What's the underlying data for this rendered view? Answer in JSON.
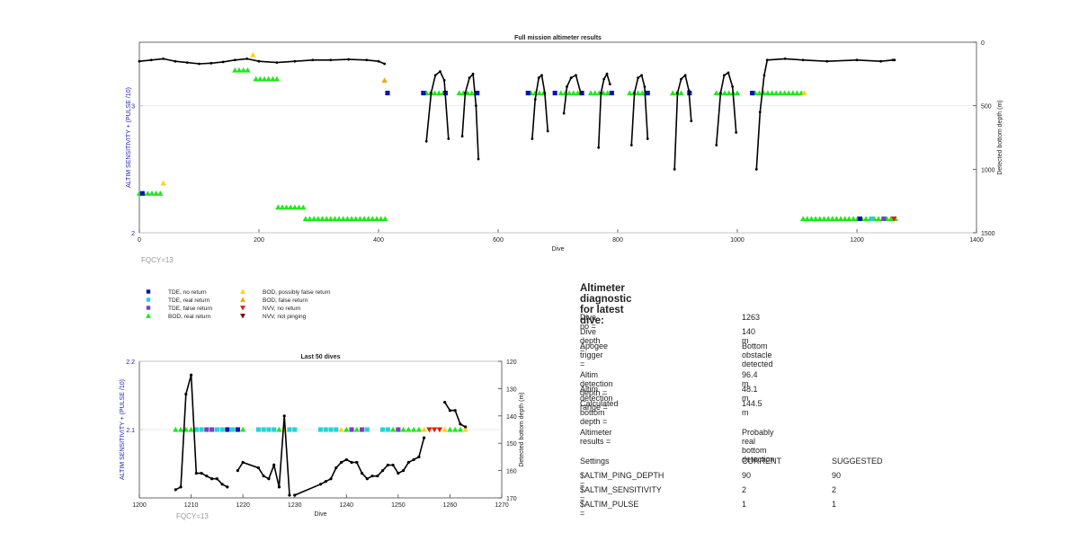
{
  "colors": {
    "tde_no_return": "#0b12b5",
    "tde_real_return": "#22d3d8",
    "tde_false_return": "#7a3fc4",
    "bod_real_return": "#1ee81a",
    "bod_possibly_false": "#ffd11a",
    "bod_false_return": "#f0a800",
    "nvv_no_return": "#e0200a",
    "nvv_not_pinging": "#7a0a0a",
    "trace": "#000000",
    "left_axis": "#2222c0",
    "fqcy": "#999999"
  },
  "chart_data": [
    {
      "type": "scatter",
      "title": "Full mission altimeter results",
      "xlabel": "Dive",
      "ylabel": "ALTIM SENSITIVITY + (PULSE /10)",
      "y2label": "Detected bottom depth (m)",
      "xlim": [
        0,
        1400
      ],
      "ylim": [
        2,
        3.5
      ],
      "y2lim": [
        1500,
        0
      ],
      "xticks": [
        "0",
        "200",
        "400",
        "600",
        "800",
        "1000",
        "1200",
        "1400"
      ],
      "yticks": [
        "2",
        "3"
      ],
      "y2ticks": [
        "0",
        "500",
        "1000",
        "1500"
      ],
      "annotation": "FQCY=13",
      "grid": true,
      "marker_bands": [
        {
          "x0": 0,
          "x1": 40,
          "y": 2.31,
          "kind": "bod_real_return"
        },
        {
          "x0": 160,
          "x1": 185,
          "y": 3.28,
          "kind": "bod_real_return"
        },
        {
          "x0": 195,
          "x1": 235,
          "y": 3.21,
          "kind": "bod_real_return"
        },
        {
          "x0": 232,
          "x1": 280,
          "y": 2.2,
          "kind": "bod_real_return"
        },
        {
          "x0": 278,
          "x1": 415,
          "y": 2.11,
          "kind": "bod_real_return"
        },
        {
          "x0": 480,
          "x1": 510,
          "y": 3.1,
          "kind": "bod_real_return"
        },
        {
          "x0": 535,
          "x1": 560,
          "y": 3.1,
          "kind": "bod_real_return"
        },
        {
          "x0": 655,
          "x1": 680,
          "y": 3.1,
          "kind": "bod_real_return"
        },
        {
          "x0": 705,
          "x1": 745,
          "y": 3.1,
          "kind": "bod_real_return"
        },
        {
          "x0": 755,
          "x1": 785,
          "y": 3.1,
          "kind": "bod_real_return"
        },
        {
          "x0": 820,
          "x1": 850,
          "y": 3.1,
          "kind": "bod_real_return"
        },
        {
          "x0": 892,
          "x1": 912,
          "y": 3.1,
          "kind": "bod_real_return"
        },
        {
          "x0": 965,
          "x1": 1005,
          "y": 3.1,
          "kind": "bod_real_return"
        },
        {
          "x0": 1030,
          "x1": 1110,
          "y": 3.1,
          "kind": "bod_real_return"
        },
        {
          "x0": 1110,
          "x1": 1265,
          "y": 2.11,
          "kind": "bod_real_return"
        }
      ],
      "markers": [
        {
          "x": 5,
          "y": 2.31,
          "kind": "tde_no_return"
        },
        {
          "x": 40,
          "y": 2.39,
          "kind": "bod_possibly_false"
        },
        {
          "x": 190,
          "y": 3.4,
          "kind": "bod_possibly_false"
        },
        {
          "x": 410,
          "y": 3.2,
          "kind": "bod_false_return"
        },
        {
          "x": 415,
          "y": 3.1,
          "kind": "tde_no_return"
        },
        {
          "x": 475,
          "y": 3.1,
          "kind": "tde_no_return"
        },
        {
          "x": 512,
          "y": 3.1,
          "kind": "tde_no_return"
        },
        {
          "x": 565,
          "y": 3.1,
          "kind": "tde_no_return"
        },
        {
          "x": 650,
          "y": 3.1,
          "kind": "tde_no_return"
        },
        {
          "x": 695,
          "y": 3.1,
          "kind": "tde_no_return"
        },
        {
          "x": 740,
          "y": 3.1,
          "kind": "tde_no_return"
        },
        {
          "x": 790,
          "y": 3.1,
          "kind": "tde_no_return"
        },
        {
          "x": 850,
          "y": 3.1,
          "kind": "tde_no_return"
        },
        {
          "x": 920,
          "y": 3.1,
          "kind": "tde_no_return"
        },
        {
          "x": 1025,
          "y": 3.1,
          "kind": "tde_no_return"
        },
        {
          "x": 1112,
          "y": 3.1,
          "kind": "bod_possibly_false"
        },
        {
          "x": 1205,
          "y": 2.11,
          "kind": "tde_no_return"
        },
        {
          "x": 1225,
          "y": 2.11,
          "kind": "tde_real_return"
        },
        {
          "x": 1245,
          "y": 2.11,
          "kind": "tde_false_return"
        },
        {
          "x": 1262,
          "y": 2.11,
          "kind": "nvv_no_return"
        }
      ],
      "depth_segments": [
        [
          [
            0,
            150
          ],
          [
            20,
            140
          ],
          [
            40,
            130
          ],
          [
            60,
            150
          ],
          [
            80,
            160
          ],
          [
            100,
            170
          ],
          [
            120,
            165
          ],
          [
            140,
            155
          ],
          [
            160,
            140
          ],
          [
            180,
            130
          ],
          [
            200,
            150
          ],
          [
            230,
            160
          ],
          [
            260,
            150
          ],
          [
            290,
            140
          ],
          [
            320,
            140
          ],
          [
            350,
            135
          ],
          [
            380,
            140
          ],
          [
            400,
            150
          ],
          [
            410,
            170
          ]
        ],
        [
          [
            480,
            780
          ],
          [
            488,
            400
          ],
          [
            495,
            260
          ],
          [
            503,
            230
          ],
          [
            510,
            300
          ],
          [
            517,
            760
          ]
        ],
        [
          [
            540,
            740
          ],
          [
            545,
            400
          ],
          [
            552,
            280
          ],
          [
            558,
            250
          ],
          [
            563,
            500
          ],
          [
            567,
            920
          ]
        ],
        [
          [
            657,
            760
          ],
          [
            662,
            450
          ],
          [
            668,
            280
          ],
          [
            673,
            260
          ],
          [
            678,
            400
          ],
          [
            683,
            700
          ]
        ],
        [
          [
            710,
            560
          ],
          [
            715,
            350
          ],
          [
            722,
            280
          ],
          [
            730,
            260
          ],
          [
            738,
            400
          ]
        ],
        [
          [
            768,
            830
          ],
          [
            772,
            400
          ],
          [
            777,
            290
          ],
          [
            782,
            250
          ],
          [
            787,
            330
          ]
        ],
        [
          [
            823,
            810
          ],
          [
            828,
            400
          ],
          [
            834,
            280
          ],
          [
            840,
            260
          ],
          [
            845,
            350
          ],
          [
            850,
            760
          ]
        ],
        [
          [
            895,
            1000
          ],
          [
            900,
            400
          ],
          [
            906,
            290
          ],
          [
            913,
            260
          ],
          [
            919,
            380
          ],
          [
            923,
            620
          ]
        ],
        [
          [
            965,
            810
          ],
          [
            972,
            400
          ],
          [
            978,
            260
          ],
          [
            985,
            240
          ],
          [
            992,
            350
          ],
          [
            998,
            710
          ]
        ],
        [
          [
            1032,
            1000
          ],
          [
            1038,
            550
          ],
          [
            1045,
            260
          ],
          [
            1050,
            140
          ],
          [
            1080,
            130
          ],
          [
            1110,
            140
          ],
          [
            1150,
            150
          ],
          [
            1200,
            140
          ],
          [
            1240,
            150
          ],
          [
            1260,
            140
          ],
          [
            1263,
            140
          ]
        ]
      ]
    },
    {
      "type": "scatter",
      "title": "Last 50 dives",
      "xlabel": "Dive",
      "ylabel": "ALTIM SENSITIVITY + (PULSE /10)",
      "y2label": "Detected bottom depth (m)",
      "xlim": [
        1200,
        1270
      ],
      "ylim": [
        2,
        2.2
      ],
      "y2lim": [
        170,
        120
      ],
      "xticks": [
        "1200",
        "1210",
        "1220",
        "1230",
        "1240",
        "1250",
        "1260",
        "1270"
      ],
      "yticks": [
        "2.1",
        "2.2"
      ],
      "y2ticks": [
        "120",
        "130",
        "140",
        "150",
        "160",
        "170"
      ],
      "annotation": "FQCY=13",
      "markers_y": 2.1,
      "markers": [
        {
          "x": 1207,
          "kind": "bod_real_return"
        },
        {
          "x": 1208,
          "kind": "bod_real_return"
        },
        {
          "x": 1209,
          "kind": "bod_real_return"
        },
        {
          "x": 1210,
          "kind": "bod_real_return"
        },
        {
          "x": 1211,
          "kind": "tde_real_return"
        },
        {
          "x": 1212,
          "kind": "tde_real_return"
        },
        {
          "x": 1213,
          "kind": "tde_false_return"
        },
        {
          "x": 1214,
          "kind": "tde_false_return"
        },
        {
          "x": 1215,
          "kind": "tde_real_return"
        },
        {
          "x": 1216,
          "kind": "tde_real_return"
        },
        {
          "x": 1217,
          "kind": "tde_no_return"
        },
        {
          "x": 1218,
          "kind": "tde_real_return"
        },
        {
          "x": 1219,
          "kind": "tde_no_return"
        },
        {
          "x": 1220,
          "kind": "bod_real_return"
        },
        {
          "x": 1223,
          "kind": "tde_real_return"
        },
        {
          "x": 1224,
          "kind": "tde_real_return"
        },
        {
          "x": 1225,
          "kind": "tde_real_return"
        },
        {
          "x": 1226,
          "kind": "tde_real_return"
        },
        {
          "x": 1227,
          "kind": "bod_real_return"
        },
        {
          "x": 1228,
          "kind": "bod_possibly_false"
        },
        {
          "x": 1229,
          "kind": "tde_real_return"
        },
        {
          "x": 1230,
          "kind": "tde_real_return"
        },
        {
          "x": 1235,
          "kind": "tde_real_return"
        },
        {
          "x": 1236,
          "kind": "tde_real_return"
        },
        {
          "x": 1237,
          "kind": "tde_real_return"
        },
        {
          "x": 1238,
          "kind": "tde_real_return"
        },
        {
          "x": 1239,
          "kind": "bod_possibly_false"
        },
        {
          "x": 1240,
          "kind": "bod_real_return"
        },
        {
          "x": 1241,
          "kind": "tde_false_return"
        },
        {
          "x": 1242,
          "kind": "bod_real_return"
        },
        {
          "x": 1243,
          "kind": "tde_false_return"
        },
        {
          "x": 1244,
          "kind": "tde_real_return"
        },
        {
          "x": 1247,
          "kind": "tde_real_return"
        },
        {
          "x": 1248,
          "kind": "tde_real_return"
        },
        {
          "x": 1249,
          "kind": "bod_real_return"
        },
        {
          "x": 1250,
          "kind": "tde_false_return"
        },
        {
          "x": 1251,
          "kind": "bod_real_return"
        },
        {
          "x": 1252,
          "kind": "bod_real_return"
        },
        {
          "x": 1253,
          "kind": "bod_real_return"
        },
        {
          "x": 1254,
          "kind": "bod_real_return"
        },
        {
          "x": 1255,
          "kind": "bod_possibly_false"
        },
        {
          "x": 1256,
          "kind": "nvv_no_return"
        },
        {
          "x": 1257,
          "kind": "nvv_no_return"
        },
        {
          "x": 1258,
          "kind": "nvv_no_return"
        },
        {
          "x": 1259,
          "kind": "bod_possibly_false"
        },
        {
          "x": 1260,
          "kind": "bod_real_return"
        },
        {
          "x": 1261,
          "kind": "bod_real_return"
        },
        {
          "x": 1262,
          "kind": "bod_real_return"
        },
        {
          "x": 1263,
          "kind": "bod_possibly_false"
        }
      ],
      "depth_segments": [
        [
          [
            1207,
            167
          ],
          [
            1208,
            166
          ],
          [
            1209,
            132
          ],
          [
            1210,
            125
          ],
          [
            1211,
            161
          ],
          [
            1212,
            161
          ],
          [
            1213,
            162
          ],
          [
            1214,
            163
          ],
          [
            1215,
            163
          ],
          [
            1216,
            165
          ],
          [
            1217,
            166
          ]
        ],
        [
          [
            1219,
            160
          ],
          [
            1220,
            157
          ],
          [
            1223,
            159
          ],
          [
            1224,
            162
          ],
          [
            1225,
            163
          ],
          [
            1226,
            158
          ],
          [
            1227,
            166
          ],
          [
            1228,
            140
          ],
          [
            1229,
            169
          ]
        ],
        [
          [
            1230,
            169
          ],
          [
            1235,
            165
          ],
          [
            1236,
            164
          ],
          [
            1237,
            163
          ],
          [
            1238,
            159
          ],
          [
            1239,
            157
          ],
          [
            1240,
            156
          ],
          [
            1241,
            157
          ],
          [
            1242,
            157
          ],
          [
            1243,
            161
          ],
          [
            1244,
            163
          ],
          [
            1245,
            162
          ],
          [
            1246,
            162
          ],
          [
            1247,
            160
          ],
          [
            1248,
            158
          ],
          [
            1249,
            158
          ],
          [
            1250,
            161
          ],
          [
            1251,
            160
          ],
          [
            1252,
            157
          ],
          [
            1253,
            156
          ],
          [
            1254,
            155
          ],
          [
            1255,
            148
          ]
        ],
        [
          [
            1259,
            135
          ],
          [
            1260,
            138
          ],
          [
            1261,
            138
          ],
          [
            1262,
            143
          ],
          [
            1263,
            144
          ]
        ]
      ]
    }
  ],
  "legend": {
    "items": [
      {
        "label": "TDE, no return",
        "kind": "tde_no_return",
        "shape": "square"
      },
      {
        "label": "TDE, real return",
        "kind": "tde_real_return",
        "shape": "square"
      },
      {
        "label": "TDE, false return",
        "kind": "tde_false_return",
        "shape": "square"
      },
      {
        "label": "BOD, real return",
        "kind": "bod_real_return",
        "shape": "up"
      },
      {
        "label": "BOD, possibly false return",
        "kind": "bod_possibly_false",
        "shape": "up"
      },
      {
        "label": "BOD, false return",
        "kind": "bod_false_return",
        "shape": "up"
      },
      {
        "label": "NVV, no return",
        "kind": "nvv_no_return",
        "shape": "down"
      },
      {
        "label": "NVV, not pinging",
        "kind": "nvv_not_pinging",
        "shape": "down"
      }
    ]
  },
  "diagnostic": {
    "title": "Altimeter diagnostic for latest dive:",
    "rows": [
      {
        "label": "Dive no =",
        "value": "1263"
      },
      {
        "label": "Dive depth =",
        "value": "140 m"
      },
      {
        "label": "Apogee trigger =",
        "value": "Bottom obstacle detected"
      },
      {
        "label": "Altim detection depth =",
        "value": "96.4 m"
      },
      {
        "label": "Altim detection range =",
        "value": "48.1 m"
      },
      {
        "label": "Calculated bottom depth =",
        "value": "144.5 m"
      },
      {
        "label": "Altimeter results =",
        "value": "Probably real bottom detection"
      }
    ],
    "settings_header": {
      "label": "Settings",
      "current": "CURRENT",
      "suggested": "SUGGESTED"
    },
    "settings": [
      {
        "label": "$ALTIM_PING_DEPTH =",
        "current": "90",
        "suggested": "90"
      },
      {
        "label": "$ALTIM_SENSITIVITY =",
        "current": "2",
        "suggested": "2"
      },
      {
        "label": "$ALTIM_PULSE =",
        "current": "1",
        "suggested": "1"
      }
    ]
  }
}
